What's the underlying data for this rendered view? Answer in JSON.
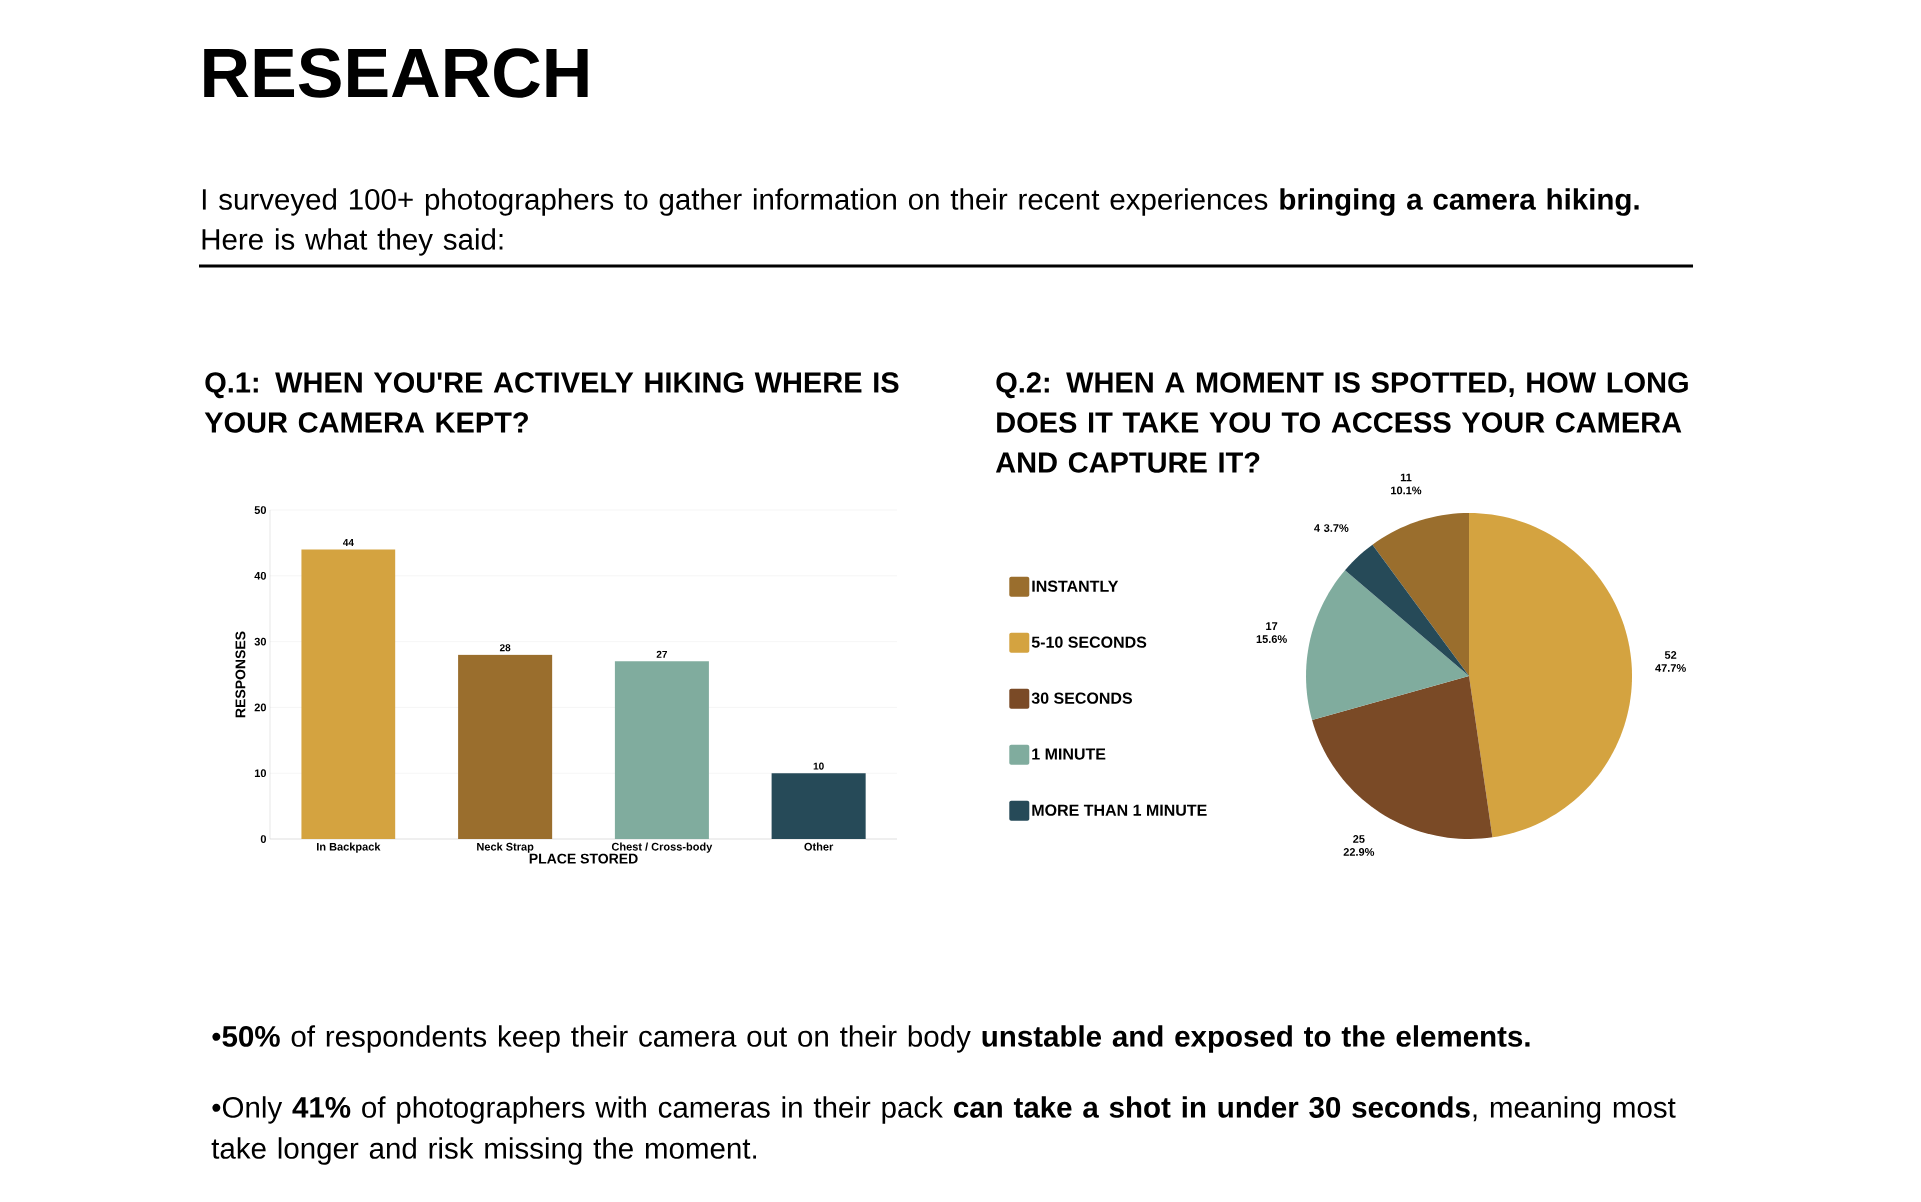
{
  "chart_data": [
    {
      "type": "bar",
      "title": "Q.1: WHEN YOU'RE ACTIVELY HIKING WHERE IS YOUR CAMERA KEPT?",
      "xlabel": "PLACE STORED",
      "ylabel": "RESPONSES",
      "categories": [
        "In Backpack",
        "Neck Strap",
        "Chest / Cross-body",
        "Other"
      ],
      "values": [
        44,
        28,
        27,
        10
      ],
      "colors": [
        "#d4a340",
        "#9a6e2d",
        "#80ac9e",
        "#264a58"
      ],
      "ylim": [
        0,
        50
      ],
      "yticks": [
        0,
        10,
        20,
        30,
        40,
        50
      ],
      "grid": "y",
      "data_labels": true,
      "annotations": [
        "RESEARCH",
        "I surveyed 100+ photographers to gather information on their recent experiences **bringing a camera hiking.** Here is what they said:",
        "•**50%** of respondents keep their camera out on their body **unstable and exposed to the elements.**",
        "•Only **41%** of photographers with cameras in their pack **can take a shot in under 30 seconds**, meaning most take longer and risk missing the moment."
      ]
    },
    {
      "type": "pie",
      "title": "Q.2: WHEN A MOMENT IS SPOTTED, HOW LONG DOES IT TAKE YOU TO ACCESS YOUR CAMERA AND CAPTURE IT?",
      "categories": [
        "INSTANTLY",
        "5-10 SECONDS",
        "30 SECONDS",
        "1 MINUTE",
        "MORE THAN 1 MINUTE"
      ],
      "values": [
        11,
        52,
        25,
        17,
        4
      ],
      "colors": [
        "#9a6e2d",
        "#d4a340",
        "#7a4a26",
        "#80ac9e",
        "#264a58"
      ],
      "value_labels": [
        "11 10.1%",
        "52 47.7%",
        "25 22.9%",
        "17 15.6%",
        "4 3.7%"
      ],
      "legend": "left"
    }
  ]
}
